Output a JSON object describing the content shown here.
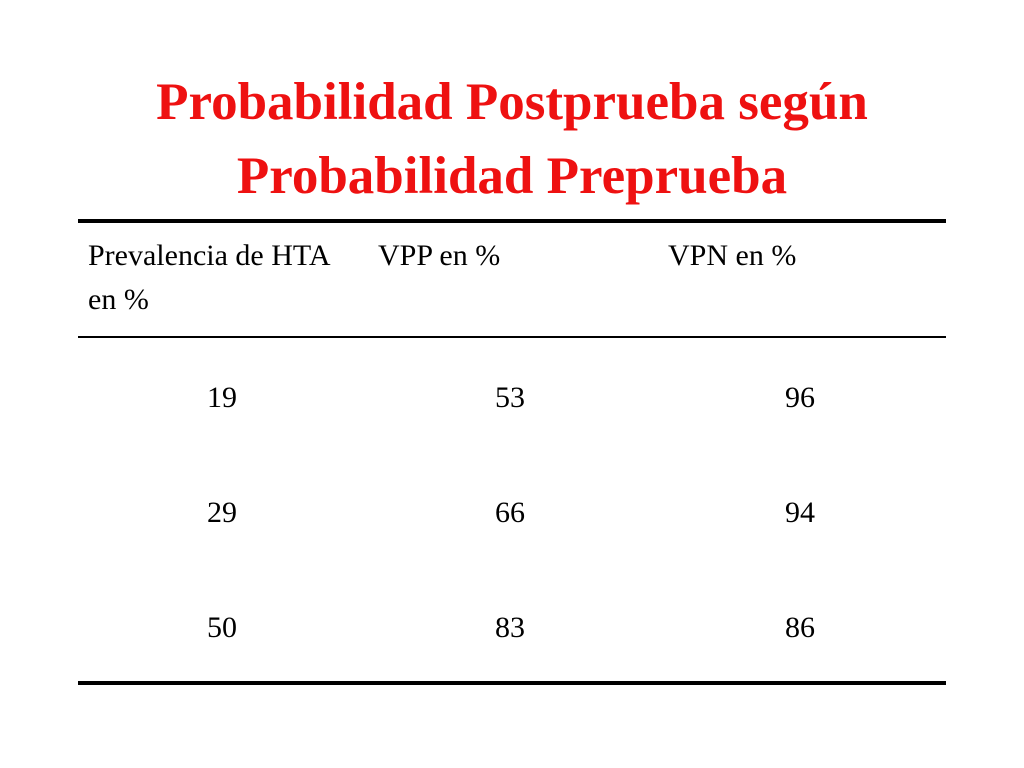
{
  "title": [
    "Probabilidad Postprueba según",
    "Probabilidad Preprueba"
  ],
  "table": {
    "header": [
      "Prevalencia de HTA en %",
      "VPP en %",
      "VPN en %"
    ],
    "rows": [
      [
        19,
        53,
        96
      ],
      [
        29,
        66,
        94
      ],
      [
        50,
        83,
        86
      ]
    ]
  }
}
